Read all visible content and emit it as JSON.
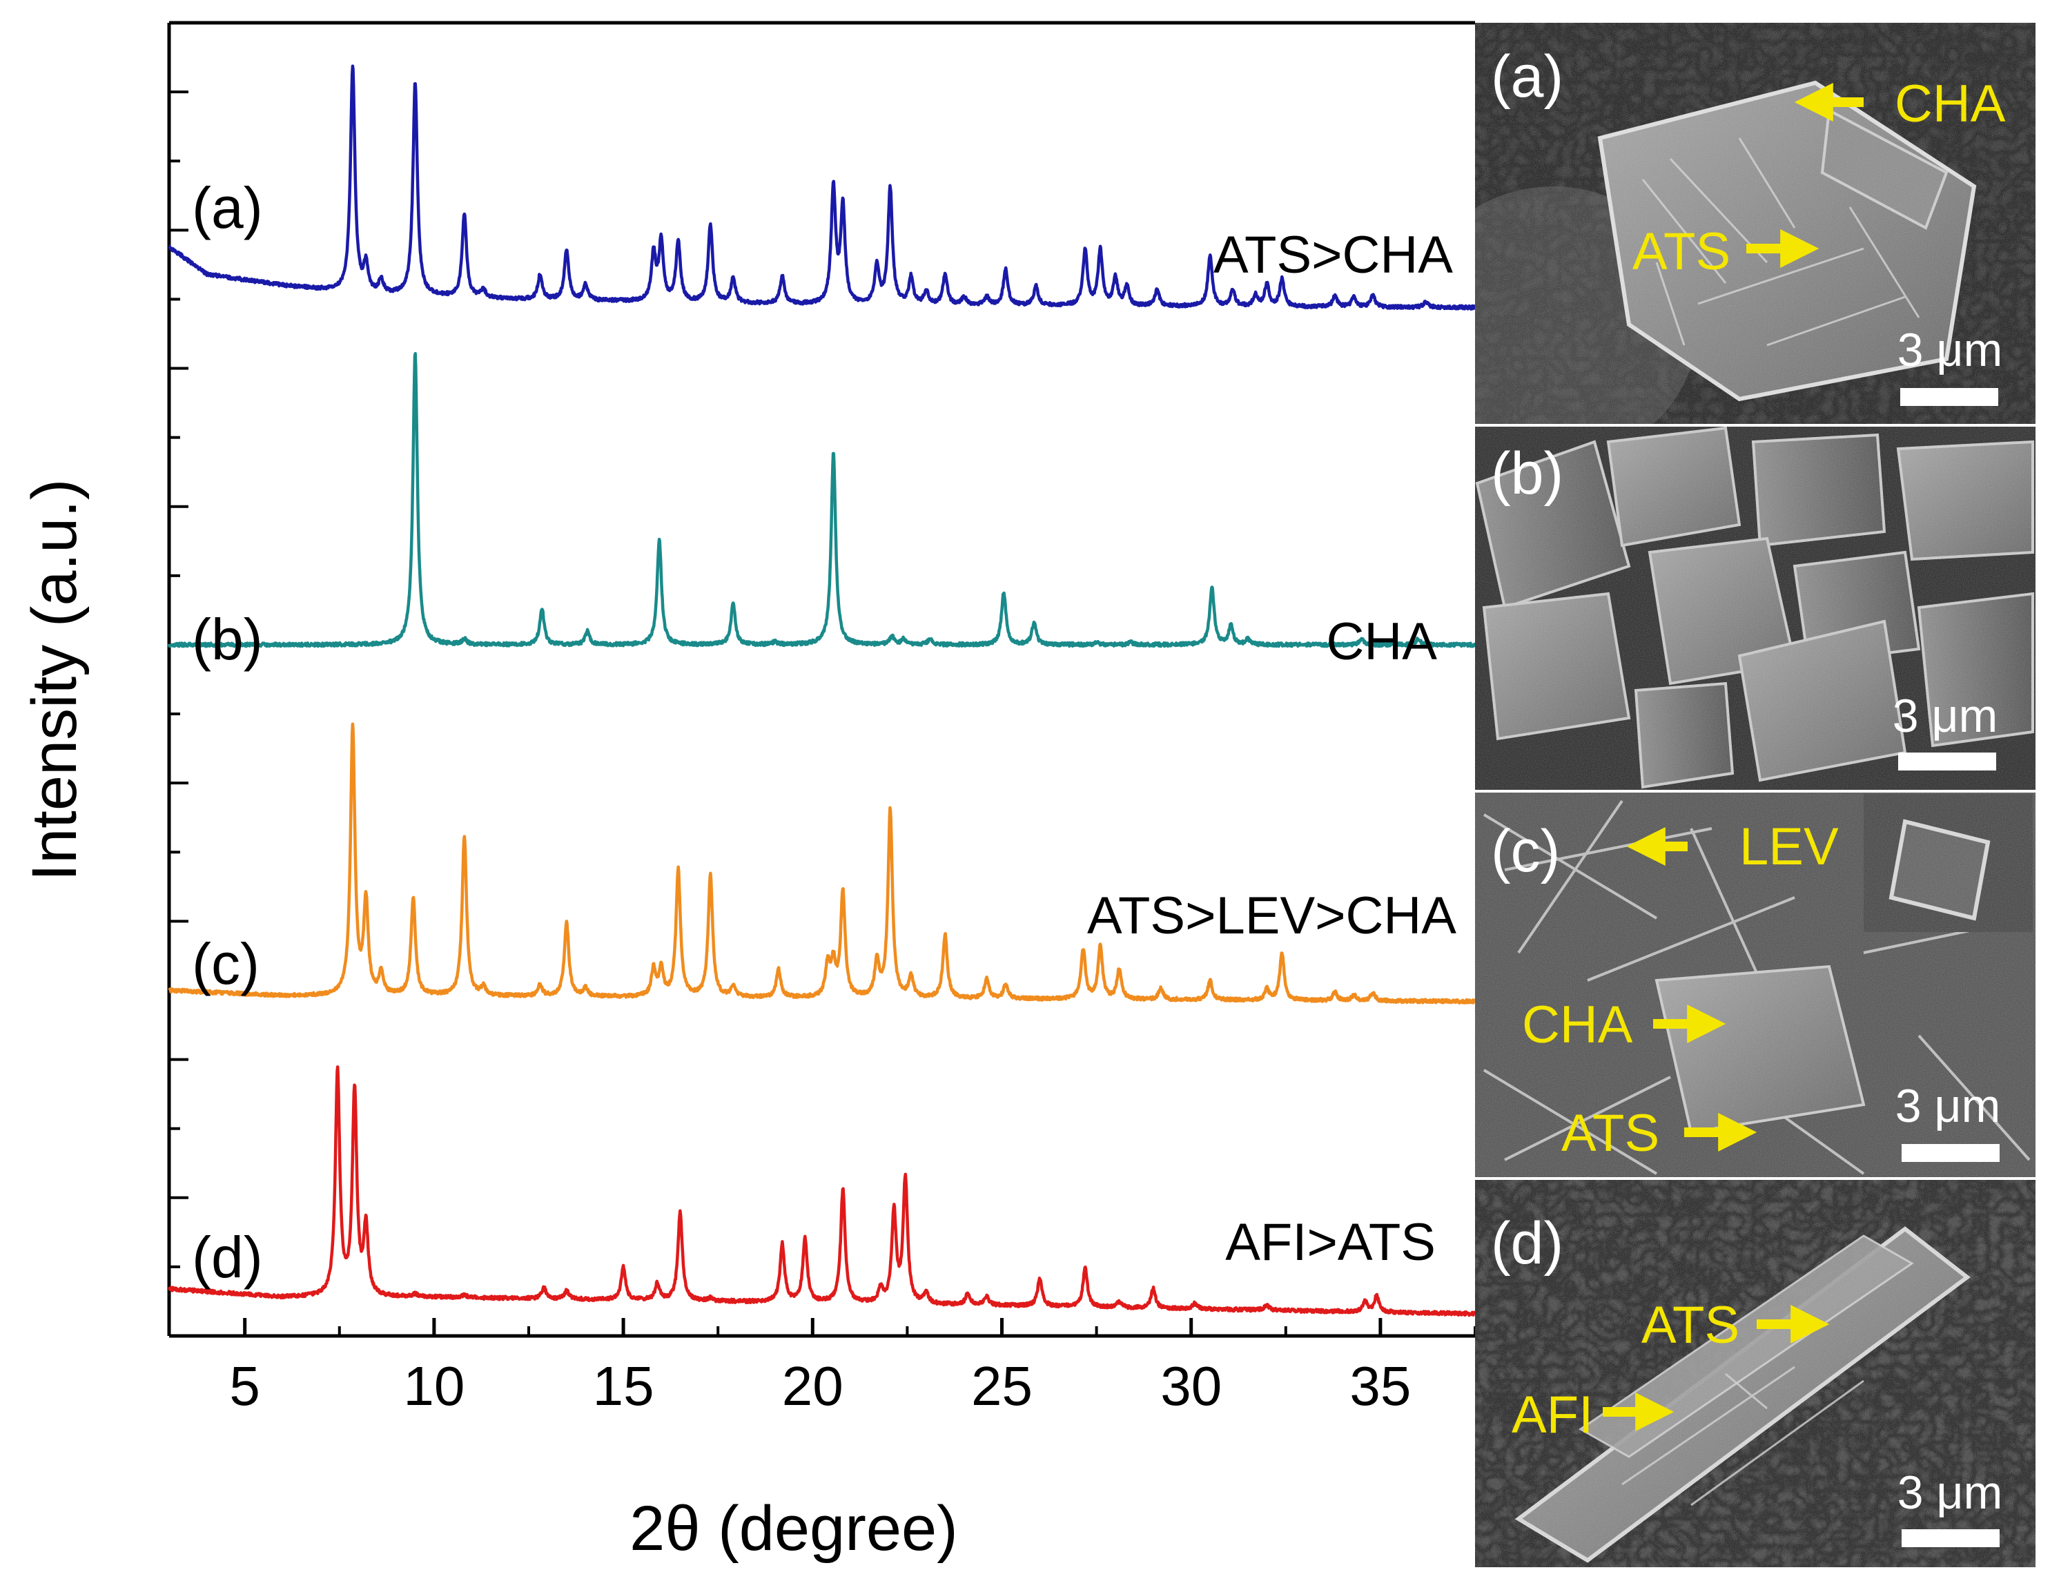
{
  "chart_data": {
    "type": "line",
    "title": "",
    "xlabel": "2θ (degree)",
    "ylabel": "Intensity (a.u.)",
    "xlim": [
      3,
      37.5
    ],
    "x_ticks": [
      5,
      10,
      15,
      20,
      25,
      30,
      35
    ],
    "x_tick_labels": [
      "5",
      "10",
      "15",
      "20",
      "25",
      "30",
      "35"
    ],
    "y_ticks_visible": false,
    "grid": false,
    "legend": "none",
    "series": [
      {
        "name": "ATS>CHA",
        "panel_label": "(a)",
        "color": "#1a1aa8",
        "baseline": 1.22,
        "background": [
          [
            3,
            0.22
          ],
          [
            4,
            0.12
          ],
          [
            6,
            0.08
          ],
          [
            8,
            0.05
          ],
          [
            12,
            0.03
          ],
          [
            20,
            0.01
          ],
          [
            37.5,
            0
          ]
        ],
        "peaks": [
          [
            7.85,
            0.82
          ],
          [
            8.2,
            0.1
          ],
          [
            8.6,
            0.05
          ],
          [
            9.5,
            0.77
          ],
          [
            10.8,
            0.3
          ],
          [
            11.3,
            0.03
          ],
          [
            12.8,
            0.09
          ],
          [
            13.5,
            0.18
          ],
          [
            14.0,
            0.06
          ],
          [
            15.8,
            0.17
          ],
          [
            16.0,
            0.22
          ],
          [
            16.45,
            0.22
          ],
          [
            17.3,
            0.28
          ],
          [
            17.9,
            0.09
          ],
          [
            19.2,
            0.1
          ],
          [
            20.55,
            0.42
          ],
          [
            20.8,
            0.35
          ],
          [
            21.7,
            0.14
          ],
          [
            22.05,
            0.42
          ],
          [
            22.6,
            0.1
          ],
          [
            23.0,
            0.05
          ],
          [
            23.5,
            0.11
          ],
          [
            24.0,
            0.03
          ],
          [
            24.6,
            0.03
          ],
          [
            25.1,
            0.13
          ],
          [
            25.9,
            0.07
          ],
          [
            27.2,
            0.2
          ],
          [
            27.6,
            0.2
          ],
          [
            28.0,
            0.1
          ],
          [
            28.3,
            0.07
          ],
          [
            29.1,
            0.06
          ],
          [
            30.5,
            0.18
          ],
          [
            31.1,
            0.06
          ],
          [
            31.7,
            0.04
          ],
          [
            32.0,
            0.08
          ],
          [
            32.4,
            0.1
          ],
          [
            33.8,
            0.04
          ],
          [
            34.3,
            0.04
          ],
          [
            34.8,
            0.04
          ],
          [
            36.2,
            0.02
          ]
        ]
      },
      {
        "name": "CHA",
        "panel_label": "(b)",
        "color": "#1a8a8a",
        "baseline": 0.0,
        "background": [
          [
            3,
            0.0
          ],
          [
            37.5,
            0.0
          ]
        ],
        "peaks": [
          [
            9.5,
            1.06
          ],
          [
            10.8,
            0.02
          ],
          [
            12.85,
            0.13
          ],
          [
            14.05,
            0.05
          ],
          [
            15.95,
            0.38
          ],
          [
            17.9,
            0.15
          ],
          [
            19.0,
            0.01
          ],
          [
            20.55,
            0.7
          ],
          [
            22.1,
            0.03
          ],
          [
            22.4,
            0.02
          ],
          [
            23.1,
            0.02
          ],
          [
            25.05,
            0.19
          ],
          [
            25.85,
            0.08
          ],
          [
            27.5,
            0.01
          ],
          [
            28.4,
            0.01
          ],
          [
            30.55,
            0.21
          ],
          [
            31.05,
            0.07
          ],
          [
            31.5,
            0.02
          ],
          [
            34.5,
            0.02
          ],
          [
            36.0,
            0.02
          ]
        ]
      },
      {
        "name": "ATS>LEV>CHA",
        "panel_label": "(c)",
        "color": "#f08c1e",
        "baseline": -1.29,
        "background": [
          [
            3,
            0.04
          ],
          [
            6,
            0.02
          ],
          [
            10,
            0.02
          ],
          [
            37.5,
            0
          ]
        ],
        "peaks": [
          [
            7.85,
            0.97
          ],
          [
            8.2,
            0.34
          ],
          [
            8.6,
            0.08
          ],
          [
            9.45,
            0.35
          ],
          [
            10.8,
            0.58
          ],
          [
            11.3,
            0.03
          ],
          [
            12.8,
            0.04
          ],
          [
            13.5,
            0.27
          ],
          [
            14.0,
            0.03
          ],
          [
            15.8,
            0.1
          ],
          [
            16.0,
            0.1
          ],
          [
            16.45,
            0.46
          ],
          [
            17.3,
            0.44
          ],
          [
            17.9,
            0.04
          ],
          [
            19.1,
            0.1
          ],
          [
            20.4,
            0.12
          ],
          [
            20.55,
            0.12
          ],
          [
            20.8,
            0.38
          ],
          [
            21.7,
            0.13
          ],
          [
            22.05,
            0.68
          ],
          [
            22.6,
            0.08
          ],
          [
            23.5,
            0.23
          ],
          [
            24.6,
            0.07
          ],
          [
            25.1,
            0.05
          ],
          [
            27.15,
            0.18
          ],
          [
            27.6,
            0.19
          ],
          [
            28.1,
            0.11
          ],
          [
            29.2,
            0.04
          ],
          [
            30.5,
            0.07
          ],
          [
            32.0,
            0.04
          ],
          [
            32.4,
            0.17
          ],
          [
            33.8,
            0.03
          ],
          [
            34.3,
            0.02
          ],
          [
            34.8,
            0.03
          ]
        ]
      },
      {
        "name": "AFI>ATS",
        "panel_label": "(d)",
        "color": "#e01a1a",
        "baseline": -2.42,
        "background": [
          [
            3,
            0.09
          ],
          [
            6,
            0.06
          ],
          [
            10,
            0.06
          ],
          [
            15,
            0.05
          ],
          [
            20,
            0.04
          ],
          [
            25,
            0.03
          ],
          [
            37.5,
            0
          ]
        ],
        "peaks": [
          [
            7.45,
            0.81
          ],
          [
            7.9,
            0.74
          ],
          [
            8.2,
            0.25
          ],
          [
            9.5,
            0.01
          ],
          [
            10.8,
            0.01
          ],
          [
            12.9,
            0.04
          ],
          [
            13.5,
            0.03
          ],
          [
            15.0,
            0.12
          ],
          [
            15.9,
            0.06
          ],
          [
            16.5,
            0.32
          ],
          [
            17.3,
            0.01
          ],
          [
            19.2,
            0.21
          ],
          [
            19.8,
            0.23
          ],
          [
            20.8,
            0.41
          ],
          [
            21.8,
            0.05
          ],
          [
            22.15,
            0.33
          ],
          [
            22.45,
            0.45
          ],
          [
            23.0,
            0.04
          ],
          [
            24.1,
            0.04
          ],
          [
            24.6,
            0.03
          ],
          [
            26.0,
            0.1
          ],
          [
            27.2,
            0.14
          ],
          [
            28.1,
            0.02
          ],
          [
            29.0,
            0.07
          ],
          [
            30.1,
            0.02
          ],
          [
            32.0,
            0.02
          ],
          [
            34.6,
            0.04
          ],
          [
            34.9,
            0.06
          ]
        ]
      }
    ],
    "annotations": [
      "(a)",
      "(b)",
      "(c)",
      "(d)",
      "ATS>CHA",
      "CHA",
      "ATS>LEV>CHA",
      "AFI>ATS"
    ]
  },
  "sem_panels": [
    {
      "panel_label": "(a)",
      "scale_bar": "3 μm",
      "labels": [
        "CHA",
        "ATS"
      ]
    },
    {
      "panel_label": "(b)",
      "scale_bar": "3 μm",
      "labels": []
    },
    {
      "panel_label": "(c)",
      "scale_bar": "3 μm",
      "labels": [
        "LEV",
        "CHA",
        "ATS"
      ]
    },
    {
      "panel_label": "(d)",
      "scale_bar": "3 μm",
      "labels": [
        "ATS",
        "AFI"
      ]
    }
  ],
  "colors": {
    "label_yellow": "#f5e600",
    "sem_dark": "#2b2b2b"
  }
}
